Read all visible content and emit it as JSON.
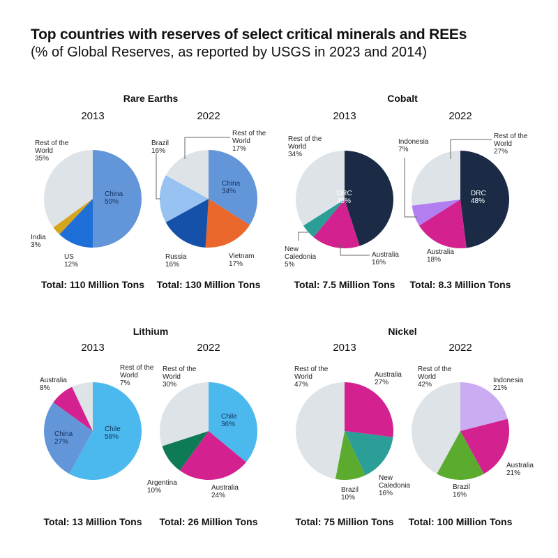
{
  "title": "Top countries with reserves of select critical minerals and REEs",
  "subtitle": "(% of Global Reserves, as reported by USGS in 2023 and 2014)",
  "chart_data": [
    {
      "type": "pie",
      "mineral": "Rare Earths",
      "year": "2013",
      "total": "Total: 110 Million Tons",
      "slices": [
        {
          "name": "China",
          "value": 50,
          "color": "#6396d9"
        },
        {
          "name": "US",
          "value": 12,
          "color": "#1f6fd8"
        },
        {
          "name": "India",
          "value": 3,
          "color": "#d6a51c"
        },
        {
          "name": "Rest of the World",
          "value": 35,
          "color": "#dee3e8"
        }
      ]
    },
    {
      "type": "pie",
      "mineral": "Rare Earths",
      "year": "2022",
      "total": "Total: 130 Million Tons",
      "slices": [
        {
          "name": "China",
          "value": 34,
          "color": "#6396d9"
        },
        {
          "name": "Vietnam",
          "value": 17,
          "color": "#e9672b"
        },
        {
          "name": "Russia",
          "value": 16,
          "color": "#1550a9"
        },
        {
          "name": "Brazil",
          "value": 16,
          "color": "#97c2f1"
        },
        {
          "name": "Rest of the World",
          "value": 17,
          "color": "#dee3e8"
        }
      ]
    },
    {
      "type": "pie",
      "mineral": "Cobalt",
      "year": "2013",
      "total": "Total: 7.5 Million Tons",
      "slices": [
        {
          "name": "DRC",
          "value": 45,
          "color": "#1b2b46"
        },
        {
          "name": "Australia",
          "value": 16,
          "color": "#d3228f"
        },
        {
          "name": "New Caledonia",
          "value": 5,
          "color": "#2a9e97"
        },
        {
          "name": "Rest of the World",
          "value": 34,
          "color": "#dee3e8"
        }
      ]
    },
    {
      "type": "pie",
      "mineral": "Cobalt",
      "year": "2022",
      "total": "Total: 8.3 Million Tons",
      "slices": [
        {
          "name": "DRC",
          "value": 48,
          "color": "#1b2b46"
        },
        {
          "name": "Australia",
          "value": 18,
          "color": "#d3228f"
        },
        {
          "name": "Indonesia",
          "value": 7,
          "color": "#b27ff0"
        },
        {
          "name": "Rest of the World",
          "value": 27,
          "color": "#dee3e8"
        }
      ]
    },
    {
      "type": "pie",
      "mineral": "Lithium",
      "year": "2013",
      "total": "Total: 13 Million Tons",
      "slices": [
        {
          "name": "Chile",
          "value": 58,
          "color": "#4cb9ee"
        },
        {
          "name": "China",
          "value": 27,
          "color": "#6396d9"
        },
        {
          "name": "Australia",
          "value": 8,
          "color": "#d3228f"
        },
        {
          "name": "Rest of the World",
          "value": 7,
          "color": "#dee3e8"
        }
      ]
    },
    {
      "type": "pie",
      "mineral": "Lithium",
      "year": "2022",
      "total": "Total: 26 Million Tons",
      "slices": [
        {
          "name": "Chile",
          "value": 36,
          "color": "#4cb9ee"
        },
        {
          "name": "Australia",
          "value": 24,
          "color": "#d3228f"
        },
        {
          "name": "Argentina",
          "value": 10,
          "color": "#0f7a56"
        },
        {
          "name": "Rest of the World",
          "value": 30,
          "color": "#dee3e8"
        }
      ]
    },
    {
      "type": "pie",
      "mineral": "Nickel",
      "year": "2013",
      "total": "Total: 75 Million Tons",
      "slices": [
        {
          "name": "Australia",
          "value": 27,
          "color": "#d3228f"
        },
        {
          "name": "New Caledonia",
          "value": 16,
          "color": "#2a9e97"
        },
        {
          "name": "Brazil",
          "value": 10,
          "color": "#5bab2f"
        },
        {
          "name": "Rest of the World",
          "value": 47,
          "color": "#dee3e8"
        }
      ]
    },
    {
      "type": "pie",
      "mineral": "Nickel",
      "year": "2022",
      "total": "Total: 100 Million Tons",
      "slices": [
        {
          "name": "Indonesia",
          "value": 21,
          "color": "#cbabf2"
        },
        {
          "name": "Australia",
          "value": 21,
          "color": "#d3228f"
        },
        {
          "name": "Brazil",
          "value": 16,
          "color": "#5bab2f"
        },
        {
          "name": "Rest of the World",
          "value": 42,
          "color": "#dee3e8"
        }
      ]
    }
  ]
}
